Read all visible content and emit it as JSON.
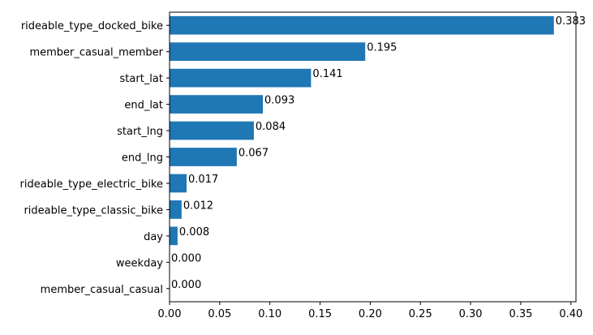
{
  "chart_data": {
    "type": "bar",
    "orientation": "horizontal",
    "title": "",
    "xlabel": "",
    "ylabel": "",
    "categories": [
      "rideable_type_docked_bike",
      "member_casual_member",
      "start_lat",
      "end_lat",
      "start_lng",
      "end_lng",
      "rideable_type_electric_bike",
      "rideable_type_classic_bike",
      "day",
      "weekday",
      "member_casual_casual"
    ],
    "values": [
      0.383,
      0.195,
      0.141,
      0.093,
      0.084,
      0.067,
      0.017,
      0.012,
      0.008,
      0.0,
      0.0
    ],
    "value_labels": [
      "0.383",
      "0.195",
      "0.141",
      "0.093",
      "0.084",
      "0.067",
      "0.017",
      "0.012",
      "0.008",
      "0.000",
      "0.000"
    ],
    "xlim": [
      0,
      0.405
    ],
    "xticks": [
      0.0,
      0.05,
      0.1,
      0.15,
      0.2,
      0.25,
      0.3,
      0.35,
      0.4
    ],
    "xtick_labels": [
      "0.00",
      "0.05",
      "0.10",
      "0.15",
      "0.20",
      "0.25",
      "0.30",
      "0.35",
      "0.40"
    ],
    "bar_color": "#1f77b4",
    "grid": false,
    "legend": false
  }
}
